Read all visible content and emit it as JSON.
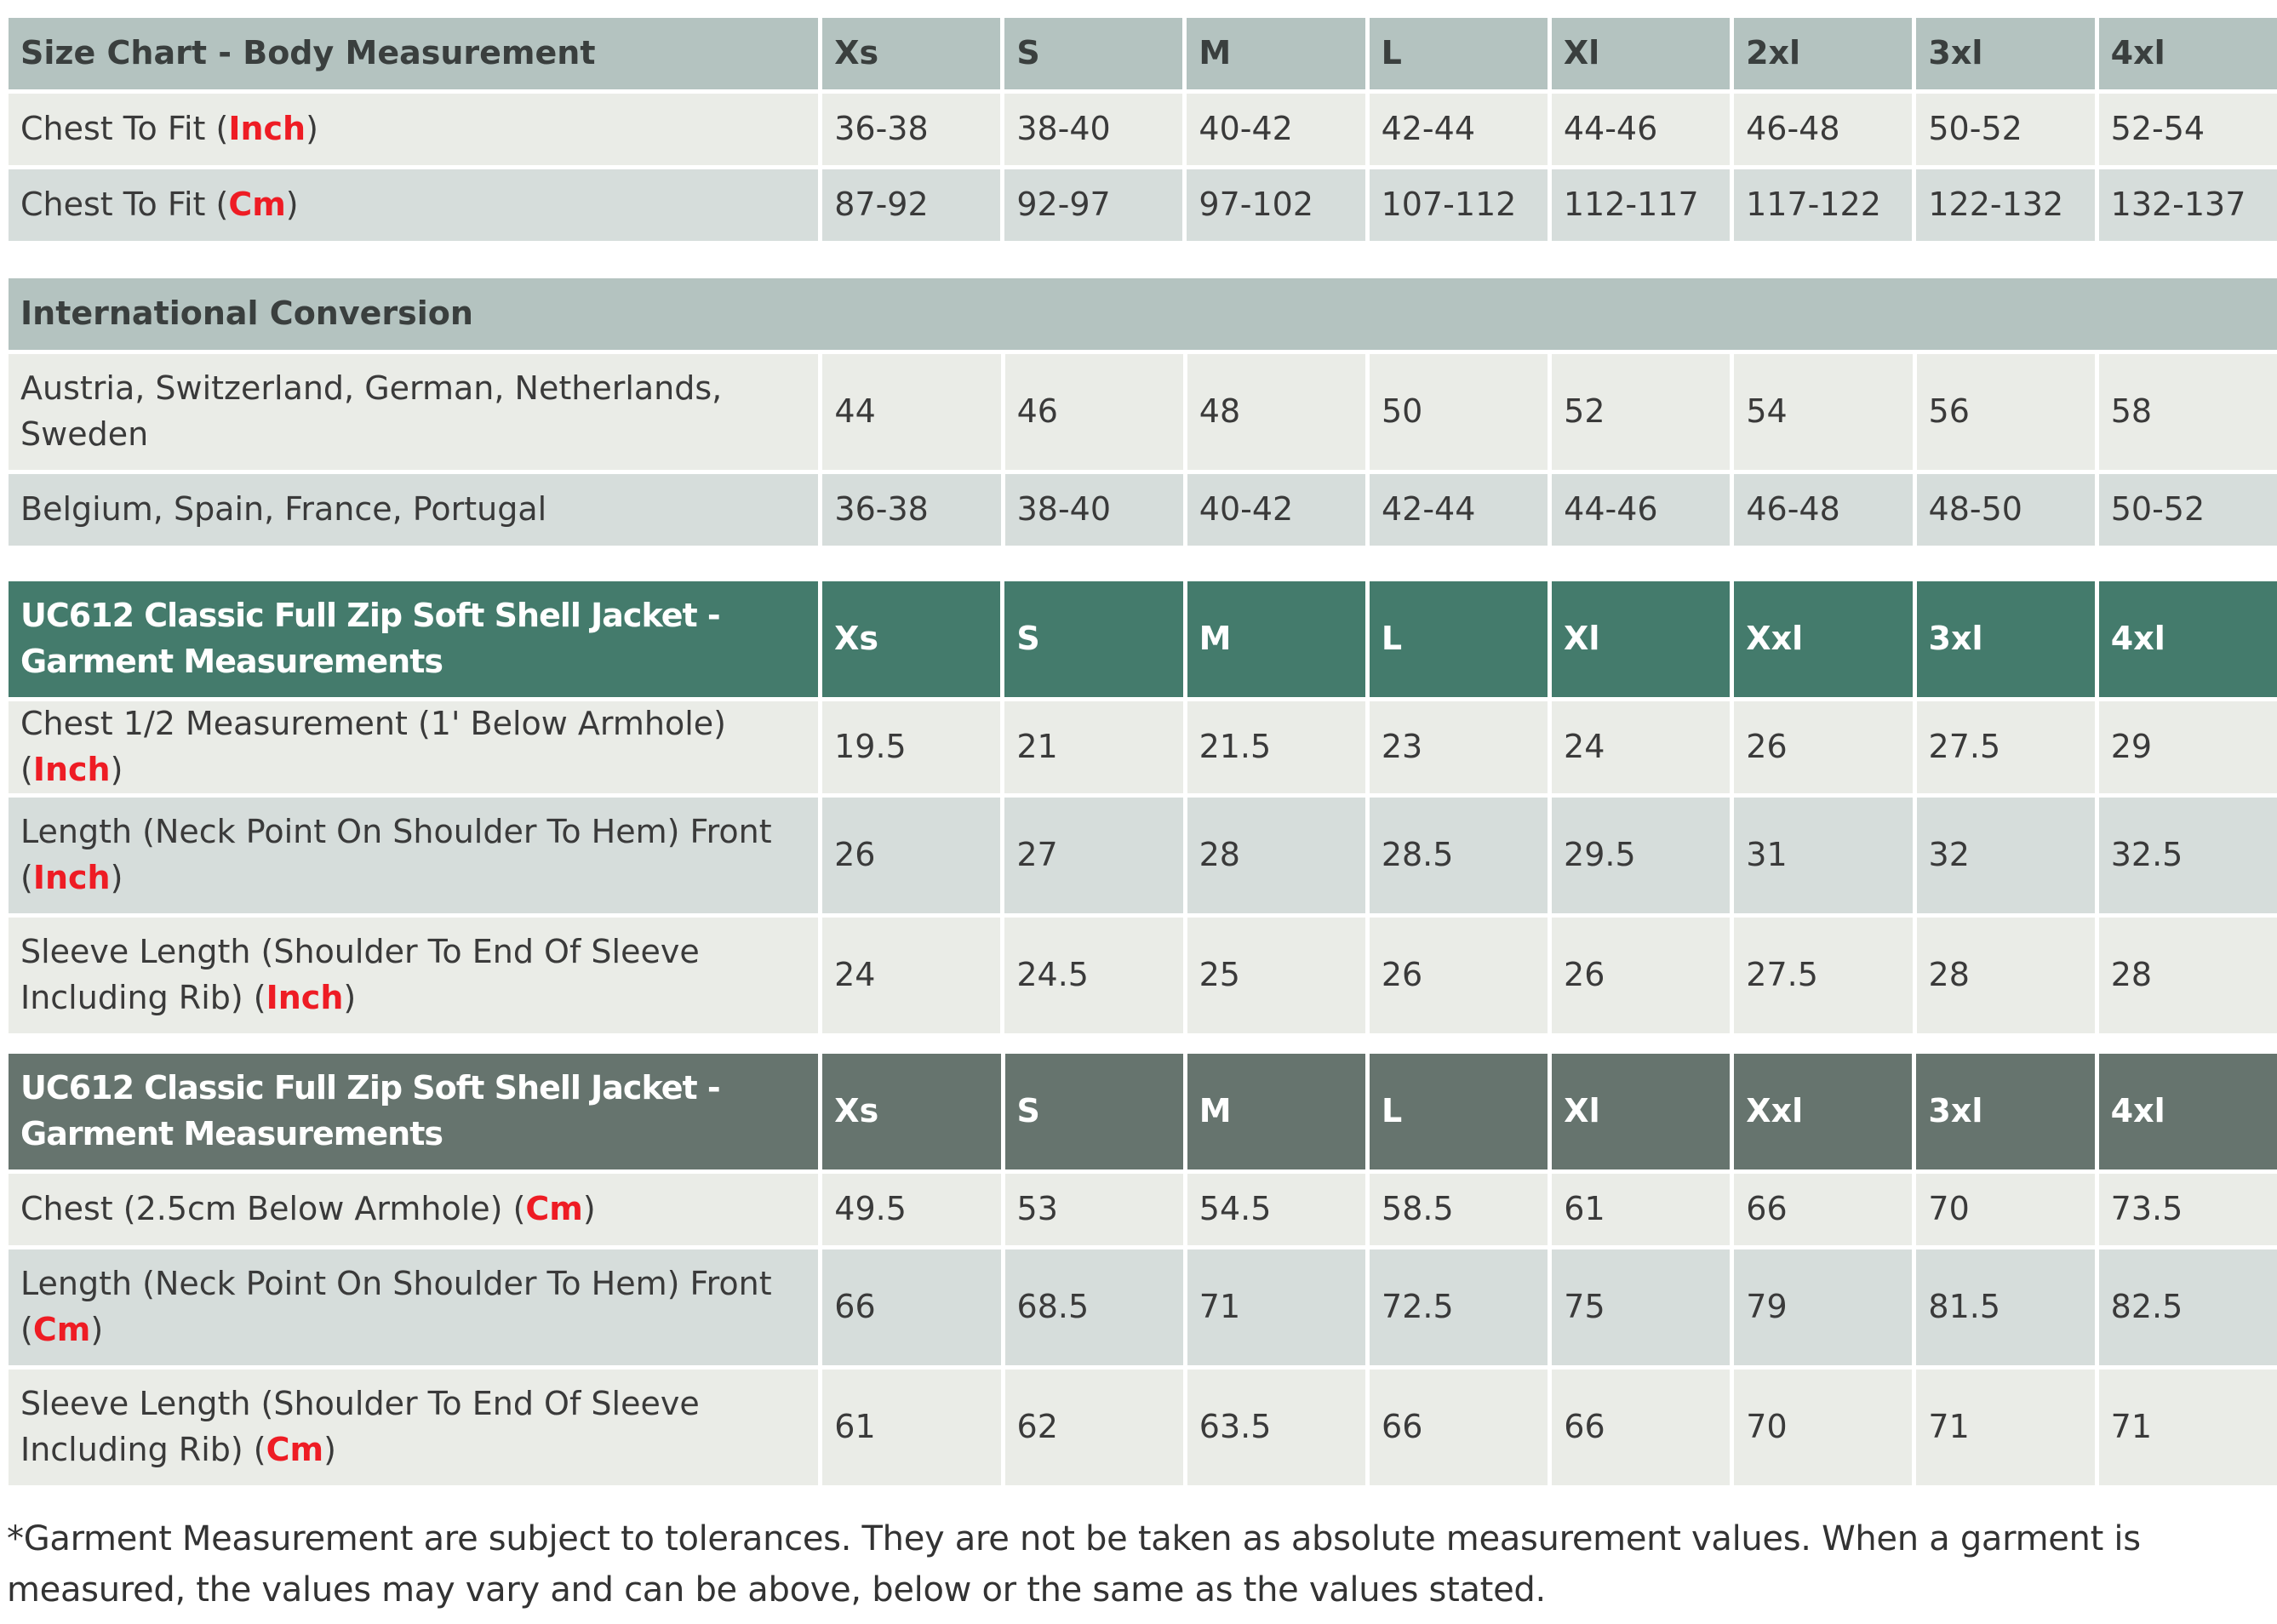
{
  "size_labels_a": [
    "Xs",
    "S",
    "M",
    "L",
    "Xl",
    "2xl",
    "3xl",
    "4xl"
  ],
  "size_labels_b": [
    "Xs",
    "S",
    "M",
    "L",
    "Xl",
    "Xxl",
    "3xl",
    "4xl"
  ],
  "body_measurement": {
    "title": "Size Chart - Body Measurement",
    "rows": [
      {
        "label": "Chest To Fit (",
        "unit": "Inch",
        "suffix": ")",
        "values": [
          "36-38",
          "38-40",
          "40-42",
          "42-44",
          "44-46",
          "46-48",
          "50-52",
          "52-54"
        ]
      },
      {
        "label": "Chest To Fit (",
        "unit": "Cm",
        "suffix": ")",
        "values": [
          "87-92",
          "92-97",
          "97-102",
          "107-112",
          "112-117",
          "117-122",
          "122-132",
          "132-137"
        ]
      }
    ]
  },
  "international_conversion": {
    "title": "International Conversion",
    "rows": [
      {
        "label": "Austria, Switzerland, German, Netherlands, Sweden",
        "values": [
          "44",
          "46",
          "48",
          "50",
          "52",
          "54",
          "56",
          "58"
        ]
      },
      {
        "label": "Belgium, Spain, France, Portugal",
        "values": [
          "36-38",
          "38-40",
          "40-42",
          "42-44",
          "44-46",
          "46-48",
          "48-50",
          "50-52"
        ]
      }
    ]
  },
  "garment_inch": {
    "title": "UC612 Classic Full Zip Soft Shell Jacket - Garment Measurements",
    "rows": [
      {
        "label": "Chest 1/2 Measurement (1' Below Armhole) (",
        "unit": "Inch",
        "suffix": ")",
        "values": [
          "19.5",
          "21",
          "21.5",
          "23",
          "24",
          "26",
          "27.5",
          "29"
        ]
      },
      {
        "label": "Length (Neck Point On Shoulder To Hem) Front (",
        "unit": "Inch",
        "suffix": ")",
        "values": [
          "26",
          "27",
          "28",
          "28.5",
          "29.5",
          "31",
          "32",
          "32.5"
        ]
      },
      {
        "label": "Sleeve Length (Shoulder To End Of Sleeve Including Rib) (",
        "unit": "Inch",
        "suffix": ")",
        "values": [
          "24",
          "24.5",
          "25",
          "26",
          "26",
          "27.5",
          "28",
          "28"
        ]
      }
    ]
  },
  "garment_cm": {
    "title": "UC612 Classic Full Zip Soft Shell Jacket - Garment Measurements",
    "rows": [
      {
        "label": "Chest (2.5cm Below Armhole) (",
        "unit": "Cm",
        "suffix": ")",
        "values": [
          "49.5",
          "53",
          "54.5",
          "58.5",
          "61",
          "66",
          "70",
          "73.5"
        ]
      },
      {
        "label": "Length (Neck Point On Shoulder To Hem) Front (",
        "unit": "Cm",
        "suffix": ")",
        "values": [
          "66",
          "68.5",
          "71",
          "72.5",
          "75",
          "79",
          "81.5",
          "82.5"
        ]
      },
      {
        "label": "Sleeve Length (Shoulder To End Of Sleeve Including Rib) (",
        "unit": "Cm",
        "suffix": ")",
        "values": [
          "61",
          "62",
          "63.5",
          "66",
          "66",
          "70",
          "71",
          "71"
        ]
      }
    ]
  },
  "note": "*Garment Measurement are subject to tolerances. They are not be taken as absolute measurement values. When a garment is measured, the values may vary and can be above, below or the same as the values stated.",
  "colors": {
    "header_grey": "#b4c3c0",
    "header_green": "#447b6c",
    "header_dark": "#66746e",
    "row_light": "#eaece7",
    "row_dark": "#d6dddb",
    "unit_red": "#ee1c24"
  }
}
